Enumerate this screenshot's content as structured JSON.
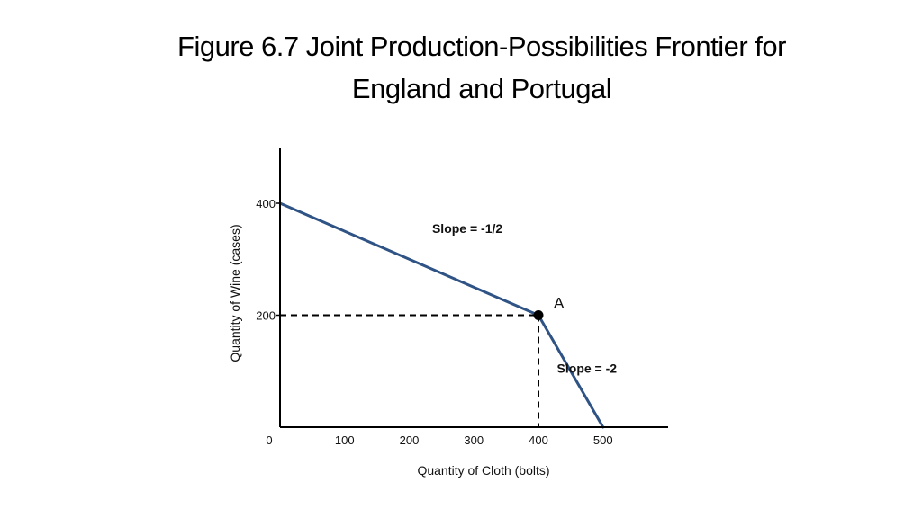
{
  "slide": {
    "title_line1": "Figure 6.7 Joint Production-Possibilities Frontier for",
    "title_line2": "England and Portugal"
  },
  "colors": {
    "frontier": "#2e5384",
    "axis": "#000000",
    "dashed_guide": "#000000",
    "point": "#000000"
  },
  "chart_data": {
    "type": "line",
    "xlabel": "Quantity of Cloth (bolts)",
    "ylabel": "Quantity of Wine (cases)",
    "xlim": [
      0,
      600
    ],
    "ylim": [
      0,
      490
    ],
    "x_ticks": [
      0,
      100,
      200,
      300,
      400,
      500
    ],
    "y_ticks": [
      200,
      400
    ],
    "grid": false,
    "series": [
      {
        "points": [
          {
            "x": 0,
            "y": 400
          },
          {
            "x": 400,
            "y": 200
          },
          {
            "x": 500,
            "y": 0
          }
        ]
      }
    ],
    "highlight_point": {
      "label": "A",
      "x": 400,
      "y": 200
    },
    "annotations": [
      {
        "text": "Slope = -1/2",
        "x": 290,
        "y": 355
      },
      {
        "text": "Slope = -2",
        "x": 475,
        "y": 105
      }
    ]
  }
}
